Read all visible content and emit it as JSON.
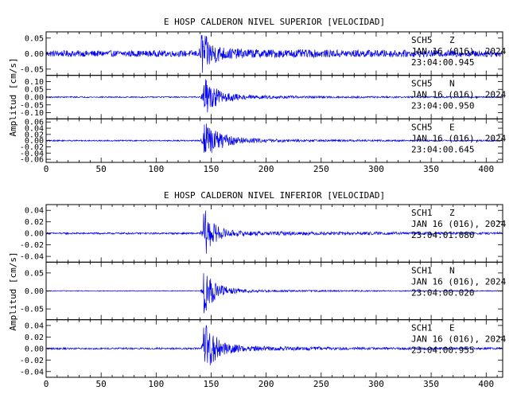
{
  "chart_data": [
    {
      "type": "line",
      "title": "E HOSP CALDERON NIVEL SUPERIOR [VELOCIDAD]",
      "ylabel": "Amplitud [cm/s]",
      "xlim": [
        0,
        415
      ],
      "xticks": [
        "0",
        "50",
        "100",
        "150",
        "200",
        "250",
        "300",
        "350",
        "400"
      ],
      "traces": [
        {
          "station": "SCH5",
          "component": "Z",
          "date": "JAN 16 (016), 2024",
          "time": "23:04:00.945",
          "ylim": [
            -0.07,
            0.07
          ],
          "yticks": [
            "0.05",
            "0.00",
            "-0.05"
          ],
          "ytick_values": [
            0.05,
            0.0,
            -0.05
          ],
          "noise": 0.01,
          "onset": 141,
          "peak": 0.065,
          "decay": 9,
          "coda_level": 0.006,
          "coda_decay": 120
        },
        {
          "station": "SCH5",
          "component": "N",
          "date": "JAN 16 (016), 2024",
          "time": "23:04:00.950",
          "ylim": [
            -0.14,
            0.14
          ],
          "yticks": [
            "0.10",
            "0.05",
            "0.00",
            "-0.05",
            "-0.10"
          ],
          "ytick_values": [
            0.1,
            0.05,
            0.0,
            -0.05,
            -0.1
          ],
          "noise": 0.004,
          "onset": 143,
          "peak": 0.12,
          "decay": 12,
          "coda_level": 0.01,
          "coda_decay": 90
        },
        {
          "station": "SCH5",
          "component": "E",
          "date": "JAN 16 (016), 2024",
          "time": "23:04:00.645",
          "ylim": [
            -0.07,
            0.07
          ],
          "yticks": [
            "0.06",
            "0.04",
            "0.02",
            "0.00",
            "-0.02",
            "-0.04",
            "-0.06"
          ],
          "ytick_values": [
            0.06,
            0.04,
            0.02,
            0.0,
            -0.02,
            -0.04,
            -0.06
          ],
          "noise": 0.002,
          "onset": 143,
          "peak": 0.06,
          "decay": 14,
          "coda_level": 0.006,
          "coda_decay": 80
        }
      ]
    },
    {
      "type": "line",
      "title": "E HOSP CALDERON NIVEL INFERIOR [VELOCIDAD]",
      "ylabel": "Amplitud [cm/s]",
      "xlim": [
        0,
        415
      ],
      "xticks": [
        "0",
        "50",
        "100",
        "150",
        "200",
        "250",
        "300",
        "350",
        "400"
      ],
      "traces": [
        {
          "station": "SCH1",
          "component": "Z",
          "date": "JAN 16 (016), 2024",
          "time": "23:04:01.080",
          "ylim": [
            -0.05,
            0.05
          ],
          "yticks": [
            "0.04",
            "0.02",
            "0.00",
            "-0.02",
            "-0.04"
          ],
          "ytick_values": [
            0.04,
            0.02,
            0.0,
            -0.02,
            -0.04
          ],
          "noise": 0.0015,
          "onset": 143,
          "peak": 0.045,
          "decay": 8,
          "coda_level": 0.003,
          "coda_decay": 150
        },
        {
          "station": "SCH1",
          "component": "N",
          "date": "JAN 16 (016), 2024",
          "time": "23:04:00.020",
          "ylim": [
            -0.08,
            0.08
          ],
          "yticks": [
            "0.05",
            "0.00",
            "-0.05"
          ],
          "ytick_values": [
            0.05,
            0.0,
            -0.05
          ],
          "noise": 0.001,
          "onset": 143,
          "peak": 0.065,
          "decay": 10,
          "coda_level": 0.004,
          "coda_decay": 90
        },
        {
          "station": "SCH1",
          "component": "E",
          "date": "JAN 16 (016), 2024",
          "time": "23:04:00.955",
          "ylim": [
            -0.05,
            0.05
          ],
          "yticks": [
            "0.04",
            "0.02",
            "0.00",
            "-0.02",
            "-0.04"
          ],
          "ytick_values": [
            0.04,
            0.02,
            0.0,
            -0.02,
            -0.04
          ],
          "noise": 0.0015,
          "onset": 143,
          "peak": 0.045,
          "decay": 11,
          "coda_level": 0.004,
          "coda_decay": 100
        }
      ]
    }
  ]
}
